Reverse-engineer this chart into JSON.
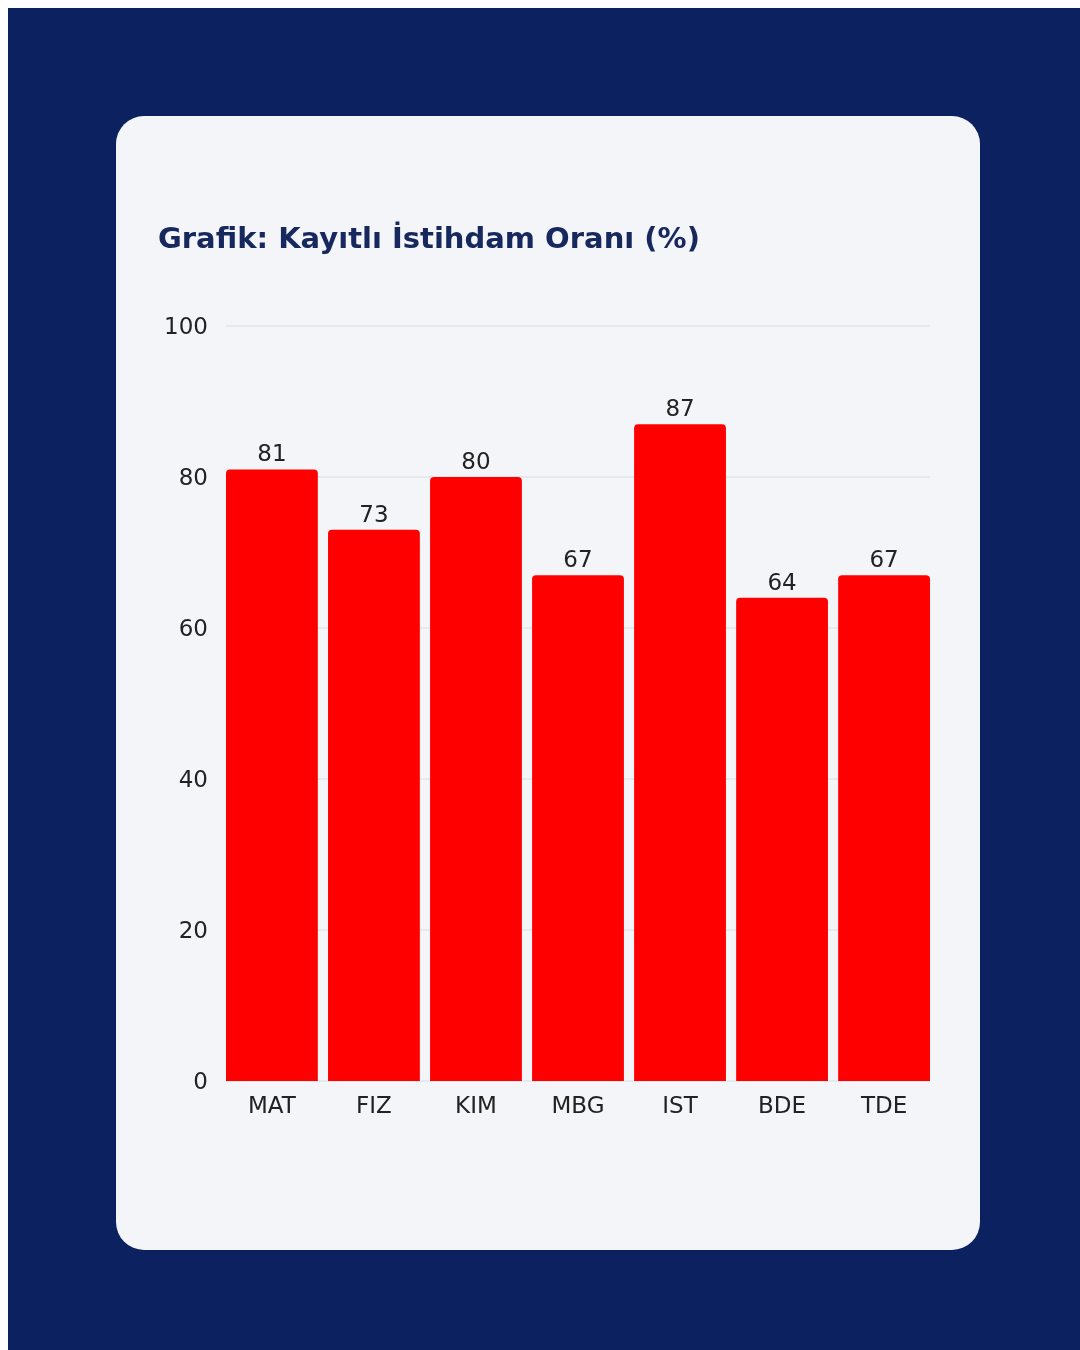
{
  "chart_data": {
    "type": "bar",
    "title": "Grafik: Kayıtlı İstihdam Oranı (%)",
    "categories": [
      "MAT",
      "FIZ",
      "KIM",
      "MBG",
      "IST",
      "BDE",
      "TDE"
    ],
    "values": [
      81,
      73,
      80,
      67,
      87,
      64,
      67
    ],
    "color": "#fe0000",
    "ylim": [
      0,
      100
    ],
    "yticks": [
      0,
      20,
      40,
      60,
      80,
      100
    ],
    "grid": "y",
    "data_labels": true
  }
}
